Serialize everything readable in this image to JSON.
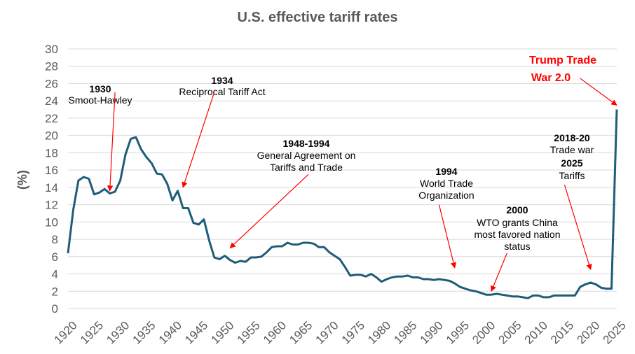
{
  "chart_data": {
    "type": "line",
    "title": "U.S. effective tariff rates",
    "ylabel": "(%)",
    "xlabel": "",
    "xlim": [
      1920,
      2025
    ],
    "ylim": [
      0,
      30
    ],
    "y_ticks": [
      "0",
      "2",
      "4",
      "6",
      "8",
      "10",
      "12",
      "14",
      "16",
      "18",
      "20",
      "22",
      "24",
      "26",
      "28",
      "30"
    ],
    "x_ticks": [
      "1920",
      "1925",
      "1930",
      "1935",
      "1940",
      "1945",
      "1950",
      "1955",
      "1960",
      "1965",
      "1970",
      "1975",
      "1980",
      "1985",
      "1990",
      "1995",
      "2000",
      "2005",
      "2010",
      "2015",
      "2020",
      "2025"
    ],
    "grid": "horizontal",
    "colors": {
      "line": "#1f5c7a",
      "arrow": "#ff0000",
      "grid": "#d9d9d9"
    },
    "series": [
      {
        "x": [
          1920,
          1921,
          1922,
          1923,
          1924,
          1925,
          1926,
          1927,
          1928,
          1929,
          1930,
          1931,
          1932,
          1933,
          1934,
          1935,
          1936,
          1937,
          1938,
          1939,
          1940,
          1941,
          1942,
          1943,
          1944,
          1945,
          1946,
          1947,
          1948,
          1949,
          1950,
          1951,
          1952,
          1953,
          1954,
          1955,
          1956,
          1957,
          1958,
          1959,
          1960,
          1961,
          1962,
          1963,
          1964,
          1965,
          1966,
          1967,
          1968,
          1969,
          1970,
          1971,
          1972,
          1973,
          1974,
          1975,
          1976,
          1977,
          1978,
          1979,
          1980,
          1981,
          1982,
          1983,
          1984,
          1985,
          1986,
          1987,
          1988,
          1989,
          1990,
          1991,
          1992,
          1993,
          1994,
          1995,
          1996,
          1997,
          1998,
          1999,
          2000,
          2001,
          2002,
          2003,
          2004,
          2005,
          2006,
          2007,
          2008,
          2009,
          2010,
          2011,
          2012,
          2013,
          2014,
          2015,
          2016,
          2017,
          2018,
          2019,
          2020,
          2021,
          2022,
          2023,
          2024,
          2025
        ],
        "values": [
          6.4,
          11.4,
          14.8,
          15.2,
          15.0,
          13.2,
          13.4,
          13.8,
          13.3,
          13.5,
          14.8,
          17.8,
          19.6,
          19.8,
          18.4,
          17.5,
          16.8,
          15.6,
          15.5,
          14.4,
          12.5,
          13.6,
          11.6,
          11.6,
          9.9,
          9.7,
          10.3,
          7.9,
          5.9,
          5.7,
          6.1,
          5.6,
          5.3,
          5.5,
          5.4,
          5.9,
          5.9,
          6.0,
          6.5,
          7.1,
          7.2,
          7.2,
          7.6,
          7.4,
          7.4,
          7.6,
          7.6,
          7.5,
          7.1,
          7.1,
          6.5,
          6.1,
          5.7,
          4.8,
          3.8,
          3.9,
          3.9,
          3.7,
          4.0,
          3.6,
          3.1,
          3.4,
          3.6,
          3.7,
          3.7,
          3.8,
          3.6,
          3.6,
          3.4,
          3.4,
          3.3,
          3.4,
          3.3,
          3.2,
          2.9,
          2.5,
          2.3,
          2.1,
          2.0,
          1.8,
          1.6,
          1.6,
          1.7,
          1.6,
          1.5,
          1.4,
          1.4,
          1.3,
          1.2,
          1.5,
          1.5,
          1.3,
          1.3,
          1.5,
          1.5,
          1.5,
          1.5,
          1.5,
          2.5,
          2.8,
          3.0,
          2.8,
          2.4,
          2.3,
          2.3,
          23.0
        ]
      }
    ],
    "annotations": [
      {
        "year": "1930",
        "label": "Smoot-Hawley",
        "from": [
          1929,
          25.0
        ],
        "to": [
          1928,
          13.6
        ]
      },
      {
        "year": "1934",
        "label": "Reciprocal Tariff Act",
        "from": [
          1948,
          25.0
        ],
        "to": [
          1942,
          14.0
        ]
      },
      {
        "year": "1948-1994",
        "label_lines": [
          "General Agreement on",
          "Tariffs and Trade"
        ],
        "from": [
          1966,
          15.5
        ],
        "to": [
          1951,
          7.0
        ]
      },
      {
        "year": "1994",
        "label_lines": [
          "World Trade",
          "Organization"
        ],
        "from": [
          1991,
          12.0
        ],
        "to": [
          1994,
          4.7
        ]
      },
      {
        "year": "2000",
        "label_lines": [
          "WTO grants China",
          "most favored nation",
          "status"
        ],
        "from": [
          2004,
          6.4
        ],
        "to": [
          2001,
          2.0
        ]
      },
      {
        "year_lines": [
          "2018-20",
          "2025"
        ],
        "label_lines": [
          "Trade war",
          "Tariffs"
        ],
        "from": [
          2015,
          14.3
        ],
        "to": [
          2020,
          4.5
        ]
      },
      {
        "label_lines": [
          "Trump Trade",
          "War 2.0"
        ],
        "from": [
          2018,
          26.6
        ],
        "to": [
          2025,
          23.5
        ]
      }
    ]
  }
}
